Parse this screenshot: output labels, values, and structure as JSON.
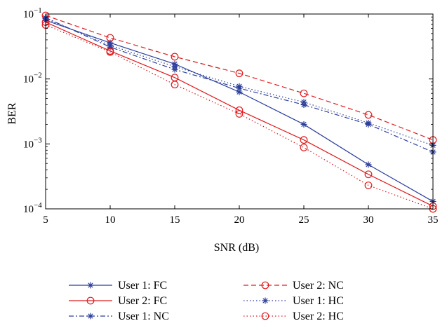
{
  "chart_data": {
    "type": "line",
    "xlabel": "SNR (dB)",
    "ylabel": "BER",
    "x": [
      5,
      10,
      15,
      20,
      25,
      30,
      35
    ],
    "xlim": [
      5,
      35
    ],
    "ylim": [
      0.0001,
      0.1
    ],
    "yscale": "log",
    "x_ticks": [
      "5",
      "10",
      "15",
      "20",
      "25",
      "30",
      "35"
    ],
    "y_ticks": [
      {
        "value": 0.1,
        "base": "10",
        "exp": "−1"
      },
      {
        "value": 0.01,
        "base": "10",
        "exp": "−2"
      },
      {
        "value": 0.001,
        "base": "10",
        "exp": "−3"
      },
      {
        "value": 0.0001,
        "base": "10",
        "exp": "−4"
      }
    ],
    "grid": false,
    "legend_position": "bottom",
    "series": [
      {
        "name": "User 1: FC",
        "color": "#2c3e9b",
        "linestyle": "solid",
        "marker": "star",
        "values": [
          0.08,
          0.036,
          0.017,
          0.0063,
          0.002,
          0.00048,
          0.00013
        ]
      },
      {
        "name": "User 2: FC",
        "color": "#e0191d",
        "linestyle": "solid",
        "marker": "circle",
        "values": [
          0.075,
          0.027,
          0.0105,
          0.0033,
          0.00115,
          0.00034,
          0.00011
        ]
      },
      {
        "name": "User 1: NC",
        "color": "#2c3e9b",
        "linestyle": "dashdot",
        "marker": "star",
        "values": [
          0.088,
          0.031,
          0.014,
          0.0072,
          0.004,
          0.002,
          0.00075
        ]
      },
      {
        "name": "User 2: NC",
        "color": "#e0191d",
        "linestyle": "dashed",
        "marker": "circle",
        "values": [
          0.095,
          0.043,
          0.022,
          0.0122,
          0.006,
          0.0028,
          0.00115
        ]
      },
      {
        "name": "User 1: HC",
        "color": "#2c3e9b",
        "linestyle": "dotted",
        "marker": "star",
        "values": [
          0.085,
          0.033,
          0.0155,
          0.0077,
          0.0044,
          0.0021,
          0.00095
        ]
      },
      {
        "name": "User 2: HC",
        "color": "#e0191d",
        "linestyle": "dotted",
        "marker": "circle",
        "values": [
          0.068,
          0.026,
          0.0082,
          0.0029,
          0.00088,
          0.00023,
          0.0001
        ]
      }
    ]
  }
}
